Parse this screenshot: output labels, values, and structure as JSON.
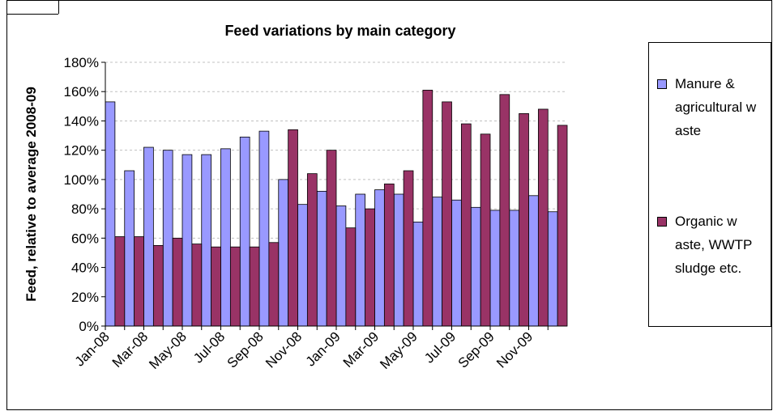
{
  "chart_data": {
    "type": "bar",
    "title": "Feed variations by main category",
    "y_label": "Feed, relative to average 2008-09",
    "categories": [
      "Jan-08",
      null,
      "Mar-08",
      null,
      "May-08",
      null,
      "Jul-08",
      null,
      "Sep-08",
      null,
      "Nov-08",
      null,
      "Jan-09",
      null,
      "Mar-09",
      null,
      "May-09",
      null,
      "Jul-09",
      null,
      "Sep-09",
      null,
      "Nov-09",
      null
    ],
    "series": [
      {
        "name": "Manure & agricultural w aste",
        "color": "#9999ff",
        "values": [
          153,
          106,
          122,
          120,
          117,
          117,
          121,
          129,
          133,
          100,
          83,
          92,
          82,
          90,
          93,
          90,
          71,
          88,
          86,
          81,
          79,
          79,
          89,
          78
        ]
      },
      {
        "name": "Organic w aste, WWTP sludge etc.",
        "color": "#993366",
        "values": [
          61,
          61,
          55,
          60,
          56,
          54,
          54,
          54,
          57,
          134,
          104,
          120,
          67,
          80,
          97,
          106,
          161,
          153,
          138,
          131,
          158,
          145,
          148,
          137
        ]
      }
    ],
    "ylim": [
      0,
      180
    ],
    "yticks": [
      {
        "value": 0,
        "label": "0%"
      },
      {
        "value": 20,
        "label": "20%"
      },
      {
        "value": 40,
        "label": "40%"
      },
      {
        "value": 60,
        "label": "60%"
      },
      {
        "value": 80,
        "label": "80%"
      },
      {
        "value": 100,
        "label": "100%"
      },
      {
        "value": 120,
        "label": "120%"
      },
      {
        "value": 140,
        "label": "140%"
      },
      {
        "value": 160,
        "label": "160%"
      },
      {
        "value": 180,
        "label": "180%"
      }
    ],
    "grid": true,
    "legend": "right"
  }
}
